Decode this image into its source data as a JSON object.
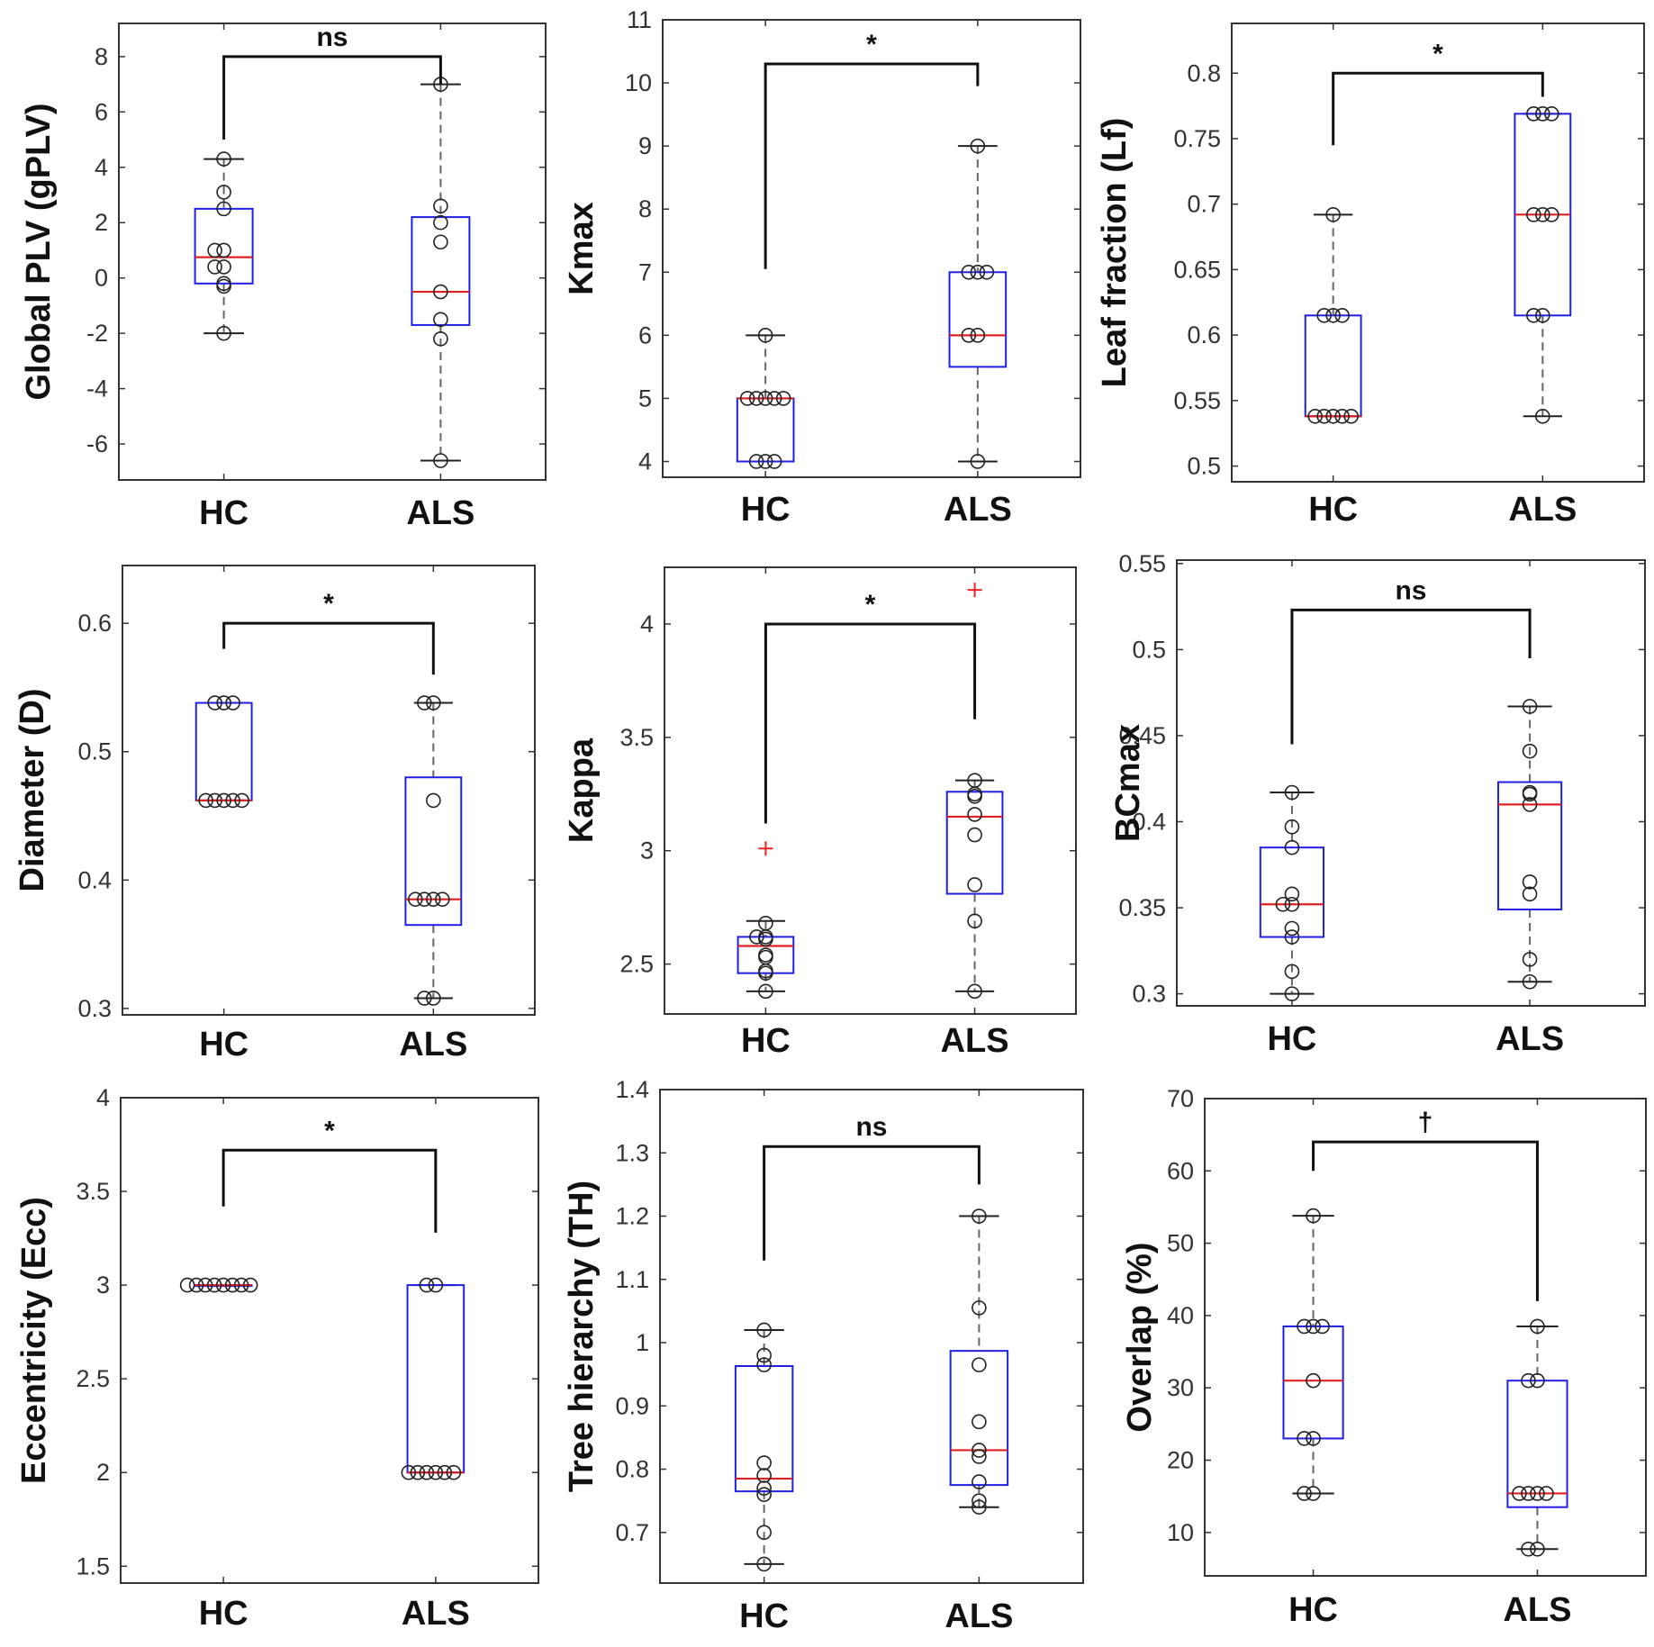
{
  "colors": {
    "box": "#1f1fe6",
    "median": "#e02020",
    "whisker": "#666666",
    "cap": "#222222",
    "point": "#222222",
    "outlier": "#ee2222",
    "axis": "#333333",
    "bracket": "#111111"
  },
  "groups": [
    "HC",
    "ALS"
  ],
  "chart_data": [
    {
      "type": "box",
      "ylabel": "Global PLV (gPLV)",
      "ylim": [
        -7.3,
        9.2
      ],
      "yticks": [
        -6,
        -4,
        -2,
        0,
        2,
        4,
        6,
        8
      ],
      "significance": "ns",
      "bracket": {
        "y": 8,
        "left_end": 5,
        "right_end": 7
      },
      "series": [
        {
          "name": "HC",
          "q1": -0.2,
          "median": 0.75,
          "q3": 2.5,
          "wlow": -2,
          "whigh": 4.3,
          "points": [
            4.3,
            3.1,
            2.5,
            1.0,
            1.0,
            0.4,
            0.4,
            -0.2,
            -0.3,
            -2.0
          ],
          "outliers": []
        },
        {
          "name": "ALS",
          "q1": -1.7,
          "median": -0.5,
          "q3": 2.2,
          "wlow": -6.6,
          "whigh": 7,
          "points": [
            7.0,
            2.6,
            2.0,
            1.3,
            -0.5,
            -1.5,
            -2.2,
            -6.6
          ],
          "outliers": []
        }
      ]
    },
    {
      "type": "box",
      "ylabel": "Kmax",
      "ylim": [
        3.75,
        11
      ],
      "yticks": [
        4,
        5,
        6,
        7,
        8,
        9,
        10,
        11
      ],
      "significance": "*",
      "bracket": {
        "y": 10.3,
        "left_end": 7.05,
        "right_end": 9.95
      },
      "series": [
        {
          "name": "HC",
          "q1": 4,
          "median": 5,
          "q3": 5,
          "wlow": 4,
          "whigh": 6,
          "points": [
            6,
            5,
            5,
            5,
            5,
            5,
            4,
            4,
            4
          ],
          "outliers": []
        },
        {
          "name": "ALS",
          "q1": 5.5,
          "median": 6,
          "q3": 7,
          "wlow": 4,
          "whigh": 9,
          "points": [
            9,
            7,
            7,
            7,
            6,
            6,
            4
          ],
          "outliers": []
        }
      ]
    },
    {
      "type": "box",
      "ylabel": "Leaf fraction (Lf)",
      "ylim": [
        0.488,
        0.838
      ],
      "yticks": [
        0.5,
        0.55,
        0.6,
        0.65,
        0.7,
        0.75,
        0.8
      ],
      "significance": "*",
      "bracket": {
        "y": 0.8,
        "left_end": 0.745,
        "right_end": 0.782
      },
      "series": [
        {
          "name": "HC",
          "q1": 0.538,
          "median": 0.538,
          "q3": 0.615,
          "wlow": 0.538,
          "whigh": 0.692,
          "points": [
            0.692,
            0.615,
            0.615,
            0.615,
            0.538,
            0.538,
            0.538,
            0.538,
            0.538
          ],
          "outliers": []
        },
        {
          "name": "ALS",
          "q1": 0.615,
          "median": 0.692,
          "q3": 0.769,
          "wlow": 0.538,
          "whigh": 0.769,
          "points": [
            0.769,
            0.769,
            0.769,
            0.692,
            0.692,
            0.692,
            0.615,
            0.615,
            0.538
          ],
          "outliers": []
        }
      ]
    },
    {
      "type": "box",
      "ylabel": "Diameter (D)",
      "ylim": [
        0.295,
        0.645
      ],
      "yticks": [
        0.3,
        0.4,
        0.5,
        0.6
      ],
      "significance": "*",
      "bracket": {
        "y": 0.6,
        "left_end": 0.58,
        "right_end": 0.56
      },
      "series": [
        {
          "name": "HC",
          "q1": 0.462,
          "median": 0.462,
          "q3": 0.538,
          "wlow": 0.462,
          "whigh": 0.538,
          "points": [
            0.538,
            0.538,
            0.538,
            0.462,
            0.462,
            0.462,
            0.462,
            0.462
          ],
          "outliers": []
        },
        {
          "name": "ALS",
          "q1": 0.365,
          "median": 0.385,
          "q3": 0.48,
          "wlow": 0.308,
          "whigh": 0.538,
          "points": [
            0.538,
            0.538,
            0.462,
            0.385,
            0.385,
            0.385,
            0.385,
            0.308,
            0.308
          ],
          "outliers": []
        }
      ]
    },
    {
      "type": "box",
      "ylabel": "Kappa",
      "ylim": [
        2.28,
        4.25
      ],
      "yticks": [
        2.5,
        3,
        3.5,
        4
      ],
      "significance": "*",
      "bracket": {
        "y": 4.0,
        "left_end": 3.12,
        "right_end": 3.58
      },
      "series": [
        {
          "name": "HC",
          "q1": 2.46,
          "median": 2.58,
          "q3": 2.62,
          "wlow": 2.38,
          "whigh": 2.69,
          "points": [
            2.68,
            2.62,
            2.62,
            2.61,
            2.54,
            2.53,
            2.47,
            2.46,
            2.38
          ],
          "outliers": [
            3.01
          ]
        },
        {
          "name": "ALS",
          "q1": 2.81,
          "median": 3.15,
          "q3": 3.26,
          "wlow": 2.38,
          "whigh": 3.31,
          "points": [
            3.31,
            3.25,
            3.24,
            3.16,
            3.07,
            2.85,
            2.69,
            2.38
          ],
          "outliers": [
            4.15
          ]
        }
      ]
    },
    {
      "type": "box",
      "ylabel": "BCmax",
      "ylim": [
        0.293,
        0.552
      ],
      "yticks": [
        0.3,
        0.35,
        0.4,
        0.45,
        0.5,
        0.55
      ],
      "significance": "ns",
      "bracket": {
        "y": 0.523,
        "left_end": 0.445,
        "right_end": 0.495
      },
      "series": [
        {
          "name": "HC",
          "q1": 0.333,
          "median": 0.352,
          "q3": 0.385,
          "wlow": 0.3,
          "whigh": 0.417,
          "points": [
            0.417,
            0.397,
            0.385,
            0.358,
            0.352,
            0.352,
            0.338,
            0.333,
            0.313,
            0.3
          ],
          "outliers": []
        },
        {
          "name": "ALS",
          "q1": 0.349,
          "median": 0.41,
          "q3": 0.423,
          "wlow": 0.307,
          "whigh": 0.467,
          "points": [
            0.467,
            0.441,
            0.417,
            0.416,
            0.41,
            0.365,
            0.358,
            0.32,
            0.307
          ],
          "outliers": []
        }
      ]
    },
    {
      "type": "box",
      "ylabel": "Eccentricity (Ecc)",
      "ylim": [
        1.41,
        4.0
      ],
      "yticks": [
        1.5,
        2,
        2.5,
        3,
        3.5,
        4
      ],
      "significance": "*",
      "bracket": {
        "y": 3.72,
        "left_end": 3.42,
        "right_end": 3.28
      },
      "series": [
        {
          "name": "HC",
          "q1": 3,
          "median": 3,
          "q3": 3,
          "wlow": 3,
          "whigh": 3,
          "points": [
            3,
            3,
            3,
            3,
            3,
            3,
            3,
            3
          ],
          "outliers": []
        },
        {
          "name": "ALS",
          "q1": 2,
          "median": 2,
          "q3": 3,
          "wlow": 2,
          "whigh": 3,
          "points": [
            3,
            3,
            2,
            2,
            2,
            2,
            2,
            2
          ],
          "outliers": []
        }
      ]
    },
    {
      "type": "box",
      "ylabel": "Tree hierarchy (TH)",
      "ylim": [
        0.62,
        1.4
      ],
      "yticks": [
        0.7,
        0.8,
        0.9,
        1,
        1.1,
        1.2,
        1.3,
        1.4
      ],
      "significance": "ns",
      "bracket": {
        "y": 1.31,
        "left_end": 1.13,
        "right_end": 1.25
      },
      "series": [
        {
          "name": "HC",
          "q1": 0.765,
          "median": 0.785,
          "q3": 0.963,
          "wlow": 0.65,
          "whigh": 1.02,
          "points": [
            1.02,
            0.98,
            0.965,
            0.81,
            0.79,
            0.77,
            0.76,
            0.7,
            0.65
          ],
          "outliers": []
        },
        {
          "name": "ALS",
          "q1": 0.775,
          "median": 0.83,
          "q3": 0.987,
          "wlow": 0.74,
          "whigh": 1.2,
          "points": [
            1.2,
            1.055,
            0.965,
            0.875,
            0.83,
            0.82,
            0.78,
            0.75,
            0.74
          ],
          "outliers": []
        }
      ]
    },
    {
      "type": "box",
      "ylabel": "Overlap (%)",
      "ylim": [
        4,
        70
      ],
      "yticks": [
        10,
        20,
        30,
        40,
        50,
        60,
        70
      ],
      "significance": "†",
      "bracket": {
        "y": 64,
        "left_end": 60,
        "right_end": 42
      },
      "series": [
        {
          "name": "HC",
          "q1": 23,
          "median": 31,
          "q3": 38.5,
          "wlow": 15.4,
          "whigh": 53.8,
          "points": [
            53.8,
            38.5,
            38.5,
            38.5,
            31,
            23,
            23,
            15.4,
            15.4
          ],
          "outliers": []
        },
        {
          "name": "ALS",
          "q1": 13.5,
          "median": 15.4,
          "q3": 31,
          "wlow": 7.7,
          "whigh": 38.5,
          "points": [
            38.5,
            31,
            31,
            15.4,
            15.4,
            15.4,
            15.4,
            7.7,
            7.7
          ],
          "outliers": []
        }
      ]
    }
  ]
}
